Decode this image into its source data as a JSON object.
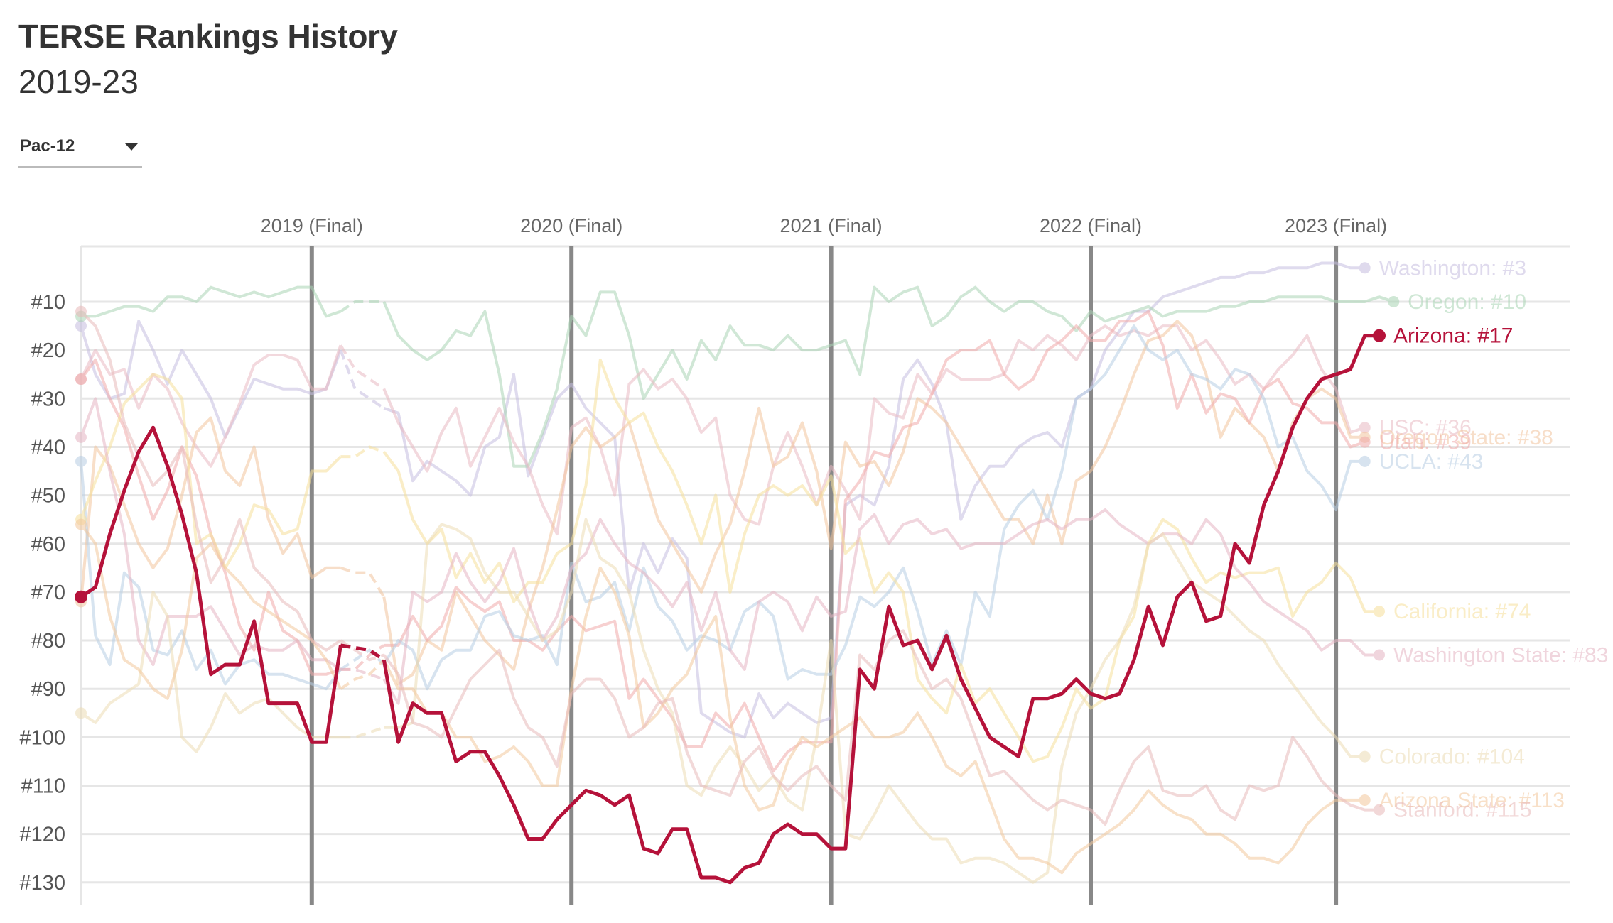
{
  "header": {
    "title": "TERSE Rankings History",
    "subtitle": "2019-23"
  },
  "filter": {
    "selected": "Pac-12"
  },
  "colors": {
    "highlight": "#b5123a",
    "season_line": "#888888",
    "grid": "#e6e6e6",
    "Washington": "#c5bde0",
    "Oregon": "#a9d4b4",
    "USC": "#e9b9c2",
    "Oregon State": "#f2c49d",
    "Utah": "#f0a9a9",
    "UCLA": "#b7cde3",
    "California": "#f6e09a",
    "Washington State": "#e5b4c2",
    "Colorado": "#ecdcb4",
    "Arizona State": "#f3c89c",
    "Stanford": "#e8b9b9"
  },
  "chart_data": {
    "type": "line",
    "title": "TERSE Rankings History",
    "subtitle": "2019-23",
    "xlabel": "",
    "ylabel": "",
    "y_axis": {
      "reversed": true,
      "range": [
        2,
        130
      ],
      "ticks": [
        "#10",
        "#20",
        "#30",
        "#40",
        "#50",
        "#60",
        "#70",
        "#80",
        "#90",
        "#100",
        "#110",
        "#120",
        "#130"
      ]
    },
    "seasons": [
      "2019 (Final)",
      "2020 (Final)",
      "2021 (Final)",
      "2022 (Final)",
      "2023 (Final)"
    ],
    "season_index": [
      16,
      34,
      52,
      70,
      87
    ],
    "grid": true,
    "highlight": "Arizona",
    "series": [
      {
        "name": "Arizona",
        "final_label": "Arizona: #17",
        "highlight": true,
        "values": [
          71,
          69,
          58,
          49,
          41,
          36,
          44,
          54,
          66,
          87,
          85,
          85,
          76,
          93,
          93,
          93,
          101,
          101,
          81,
          81.5,
          82,
          84,
          101,
          93,
          95,
          95,
          105,
          103,
          103,
          108,
          114,
          121,
          121,
          117,
          114,
          111,
          112,
          114,
          112,
          123,
          124,
          119,
          119,
          129,
          129,
          130,
          127,
          126,
          120,
          118,
          120,
          120,
          123,
          123,
          86,
          90,
          73,
          81,
          80,
          86,
          79,
          88,
          94,
          100,
          102,
          104,
          92,
          92,
          91,
          88,
          91,
          92,
          91,
          84,
          73,
          81,
          71,
          68,
          76,
          75,
          60,
          64,
          52,
          45,
          36,
          30,
          26,
          25,
          24,
          17,
          17
        ]
      },
      {
        "name": "Washington",
        "final_label": "Washington: #3",
        "values": [
          15,
          25,
          30,
          29,
          14,
          20,
          27,
          20,
          25,
          30,
          38,
          32,
          26,
          27,
          28,
          28,
          29,
          28,
          20,
          28,
          30,
          32,
          33,
          47,
          43,
          45,
          47,
          50,
          40,
          38,
          25,
          46,
          38,
          30,
          27,
          32,
          35,
          38,
          70,
          60,
          66,
          59,
          63,
          95,
          97,
          99,
          100,
          91,
          96,
          93,
          95,
          97,
          96,
          52,
          50,
          52,
          44,
          26,
          22,
          27,
          35,
          55,
          48,
          44,
          44,
          40,
          38,
          37,
          40,
          30,
          28,
          20,
          16,
          12,
          12,
          9,
          8,
          7,
          6,
          5,
          5,
          4,
          4,
          3,
          3,
          3,
          2,
          2,
          3,
          3
        ]
      },
      {
        "name": "Oregon",
        "final_label": "Oregon: #10",
        "values": [
          13,
          13,
          12,
          11,
          11,
          12,
          9,
          9,
          10,
          7,
          8,
          9,
          8,
          9,
          8,
          7,
          7,
          13,
          12,
          10,
          10,
          10,
          17,
          20,
          22,
          20,
          16,
          17,
          12,
          25,
          44,
          44,
          37,
          28,
          13,
          17,
          8,
          8,
          17,
          30,
          25,
          20,
          26,
          18,
          22,
          15,
          19,
          19,
          20,
          17,
          20,
          20,
          19,
          18,
          25,
          7,
          10,
          8,
          7,
          15,
          13,
          9,
          7,
          10,
          12,
          10,
          10,
          12,
          13,
          16,
          12,
          14,
          13,
          12,
          11,
          13,
          12,
          12,
          12,
          11,
          11,
          10,
          10,
          9,
          9,
          9,
          9,
          10,
          10,
          10,
          9,
          10
        ]
      },
      {
        "name": "USC",
        "final_label": "USC: #36",
        "values": [
          26,
          20,
          25,
          24,
          32,
          25,
          28,
          35,
          40,
          44,
          38,
          31,
          23,
          21,
          21,
          22,
          28,
          28,
          19,
          24,
          26,
          28,
          35,
          40,
          45,
          37,
          32,
          44,
          38,
          32,
          39,
          44,
          52,
          58,
          36,
          34,
          40,
          50,
          27,
          24,
          28,
          26,
          30,
          37,
          34,
          50,
          55,
          56,
          44,
          37,
          44,
          52,
          44,
          49,
          55,
          30,
          33,
          34,
          25,
          29,
          24,
          26,
          26,
          26,
          25,
          18,
          20,
          17,
          19,
          22,
          17,
          15,
          17,
          16,
          17,
          15,
          15,
          20,
          18,
          22,
          27,
          25,
          28,
          24,
          21,
          17,
          24,
          28,
          37,
          36
        ]
      },
      {
        "name": "Oregon State",
        "final_label": "Oregon State: #38",
        "values": [
          72,
          40,
          44,
          52,
          60,
          65,
          61,
          50,
          37,
          34,
          45,
          48,
          40,
          55,
          62,
          58,
          67,
          65,
          65,
          66,
          66,
          71,
          89,
          87,
          80,
          82,
          70,
          75,
          80,
          83,
          86,
          74,
          65,
          53,
          40,
          36,
          40,
          38,
          35,
          45,
          55,
          60,
          65,
          70,
          62,
          56,
          45,
          32,
          44,
          42,
          35,
          45,
          61,
          39,
          44,
          43,
          48,
          41,
          30,
          32,
          35,
          40,
          45,
          50,
          55,
          55,
          60,
          50,
          60,
          47,
          45,
          40,
          33,
          25,
          18,
          17,
          14,
          17,
          25,
          38,
          32,
          35,
          38,
          45,
          35,
          30,
          28,
          30,
          38,
          38
        ]
      },
      {
        "name": "Utah",
        "final_label": "Utah: #39",
        "values": [
          26,
          22,
          30,
          36,
          46,
          55,
          49,
          40,
          46,
          58,
          66,
          77,
          82,
          70,
          78,
          80,
          87,
          87,
          86,
          86,
          83,
          81,
          81,
          75,
          80,
          77,
          69,
          72,
          74,
          72,
          80,
          80,
          82,
          78,
          75,
          78,
          77,
          76,
          92,
          88,
          92,
          96,
          102,
          102,
          95,
          98,
          93,
          100,
          107,
          103,
          101,
          101,
          101,
          51,
          47,
          41,
          42,
          36,
          35,
          29,
          22,
          20,
          20,
          18,
          25,
          28,
          26,
          20,
          18,
          15,
          18,
          18,
          14,
          14,
          12,
          19,
          32,
          25,
          33,
          29,
          30,
          35,
          28,
          26,
          31,
          32,
          35,
          35,
          40,
          39
        ]
      },
      {
        "name": "UCLA",
        "final_label": "UCLA: #43",
        "values": [
          43,
          79,
          85,
          66,
          69,
          82,
          83,
          78,
          86,
          82,
          89,
          85,
          84,
          87,
          87,
          88,
          89,
          90,
          86,
          84,
          82,
          85,
          80,
          82,
          90,
          84,
          82,
          82,
          75,
          74,
          79,
          80,
          79,
          85,
          64,
          72,
          71,
          68,
          78,
          65,
          73,
          76,
          82,
          79,
          80,
          82,
          74,
          72,
          75,
          88,
          86,
          87,
          87,
          81,
          71,
          73,
          70,
          65,
          74,
          85,
          78,
          85,
          70,
          75,
          57,
          52,
          49,
          55,
          45,
          30,
          28,
          25,
          20,
          15,
          20,
          22,
          20,
          25,
          26,
          28,
          24,
          25,
          30,
          40,
          38,
          45,
          48,
          53,
          43,
          43
        ]
      },
      {
        "name": "California",
        "final_label": "California: #74",
        "values": [
          55,
          47,
          40,
          31,
          28,
          25,
          26,
          30,
          60,
          58,
          65,
          60,
          52,
          53,
          58,
          57,
          45,
          45,
          42,
          42,
          40,
          41,
          45,
          55,
          60,
          57,
          67,
          62,
          68,
          64,
          72,
          68,
          68,
          62,
          60,
          48,
          22,
          30,
          35,
          33,
          40,
          45,
          52,
          60,
          50,
          70,
          58,
          50,
          48,
          50,
          48,
          52,
          46,
          62,
          59,
          70,
          66,
          70,
          88,
          92,
          95,
          85,
          93,
          90,
          95,
          100,
          105,
          104,
          98,
          90,
          94,
          92,
          80,
          75,
          60,
          55,
          57,
          63,
          68,
          66,
          67,
          66,
          66,
          65,
          75,
          70,
          68,
          64,
          67,
          74,
          74
        ]
      },
      {
        "name": "Washington State",
        "final_label": "Washington State: #83",
        "values": [
          38,
          30,
          45,
          58,
          80,
          85,
          75,
          75,
          75,
          73,
          78,
          83,
          81,
          82,
          82,
          80,
          84,
          84,
          86,
          86,
          87,
          88,
          93,
          70,
          72,
          70,
          62,
          68,
          72,
          68,
          61,
          72,
          80,
          75,
          65,
          62,
          55,
          60,
          64,
          66,
          69,
          73,
          68,
          78,
          70,
          82,
          86,
          72,
          70,
          72,
          78,
          71,
          75,
          74,
          57,
          54,
          60,
          56,
          55,
          58,
          57,
          61,
          60,
          60,
          60,
          58,
          56,
          55,
          57,
          55,
          55,
          53,
          56,
          58,
          60,
          58,
          58,
          60,
          55,
          58,
          65,
          68,
          72,
          74,
          76,
          78,
          82,
          80,
          80,
          83,
          83
        ]
      },
      {
        "name": "Colorado",
        "final_label": "Colorado: #104",
        "values": [
          95,
          97,
          93,
          91,
          89,
          70,
          75,
          100,
          103,
          98,
          91,
          95,
          93,
          92,
          95,
          98,
          100,
          100,
          100,
          100,
          99,
          98,
          98,
          97,
          60,
          56,
          57,
          59,
          66,
          70,
          70,
          75,
          80,
          78,
          70,
          55,
          63,
          65,
          70,
          82,
          90,
          95,
          110,
          112,
          106,
          102,
          106,
          111,
          108,
          113,
          115,
          100,
          80,
          120,
          121,
          116,
          110,
          114,
          118,
          121,
          121,
          126,
          125,
          125,
          126,
          128,
          130,
          128,
          106,
          95,
          90,
          84,
          80,
          73,
          60,
          58,
          63,
          68,
          70,
          72,
          75,
          78,
          80,
          85,
          89,
          93,
          97,
          100,
          104,
          104
        ]
      },
      {
        "name": "Arizona State",
        "final_label": "Arizona State: #113",
        "values": [
          56,
          60,
          75,
          84,
          86,
          90,
          92,
          82,
          63,
          60,
          65,
          68,
          72,
          74,
          76,
          78,
          80,
          84,
          90,
          88,
          87,
          84,
          90,
          90,
          95,
          95,
          100,
          100,
          105,
          104,
          102,
          105,
          110,
          110,
          90,
          75,
          65,
          70,
          79,
          98,
          95,
          90,
          87,
          80,
          75,
          96,
          110,
          115,
          114,
          105,
          100,
          102,
          100,
          98,
          96,
          100,
          100,
          99,
          95,
          100,
          106,
          108,
          105,
          113,
          121,
          125,
          125,
          126,
          128,
          124,
          122,
          120,
          118,
          115,
          111,
          114,
          116,
          117,
          120,
          120,
          122,
          125,
          125,
          126,
          123,
          118,
          115,
          113,
          113,
          113
        ]
      },
      {
        "name": "Stanford",
        "final_label": "Stanford: #115",
        "values": [
          12,
          15,
          22,
          35,
          42,
          48,
          45,
          40,
          56,
          68,
          63,
          55,
          65,
          68,
          72,
          74,
          80,
          82,
          80,
          82,
          84,
          83,
          87,
          97,
          98,
          100,
          94,
          88,
          85,
          82,
          92,
          98,
          100,
          106,
          91,
          88,
          88,
          92,
          100,
          98,
          93,
          92,
          103,
          110,
          111,
          112,
          105,
          102,
          108,
          111,
          108,
          106,
          110,
          113,
          83,
          86,
          80,
          78,
          84,
          90,
          88,
          92,
          100,
          108,
          107,
          110,
          113,
          115,
          113,
          114,
          115,
          118,
          111,
          105,
          102,
          111,
          112,
          112,
          110,
          115,
          117,
          110,
          111,
          110,
          100,
          104,
          109,
          112,
          114,
          115,
          115
        ]
      }
    ]
  }
}
